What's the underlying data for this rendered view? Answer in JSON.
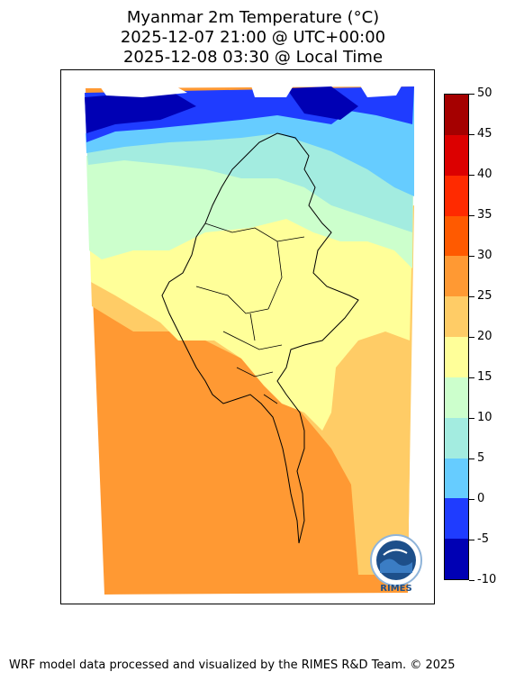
{
  "title": {
    "line1": "Myanmar 2m Temperature (°C)",
    "line2": "2025-12-07 21:00 @ UTC+00:00",
    "line3": "2025-12-08 03:30 @ Local Time"
  },
  "colorbar": {
    "ticks": [
      "50",
      "45",
      "40",
      "35",
      "30",
      "25",
      "20",
      "15",
      "10",
      "5",
      "0",
      "-5",
      "-10"
    ],
    "colors": [
      "#a50000",
      "#dc0000",
      "#ff2a00",
      "#ff5a00",
      "#ff9933",
      "#ffcc66",
      "#ffff99",
      "#ccffcc",
      "#a3ece0",
      "#66ccff",
      "#1f3cff",
      "#0000b4"
    ]
  },
  "map": {
    "palette": {
      "deep_blue": "#0000b4",
      "blue": "#1f3cff",
      "light_blue": "#66ccff",
      "aqua": "#a3ece0",
      "mint": "#ccffcc",
      "yellow": "#ffff99",
      "tan": "#ffcc66",
      "orange": "#ff9933"
    }
  },
  "logo": {
    "text": "RIMES"
  },
  "footer": {
    "text": "WRF model data processed and visualized by the RIMES R&D Team. © 2025"
  }
}
